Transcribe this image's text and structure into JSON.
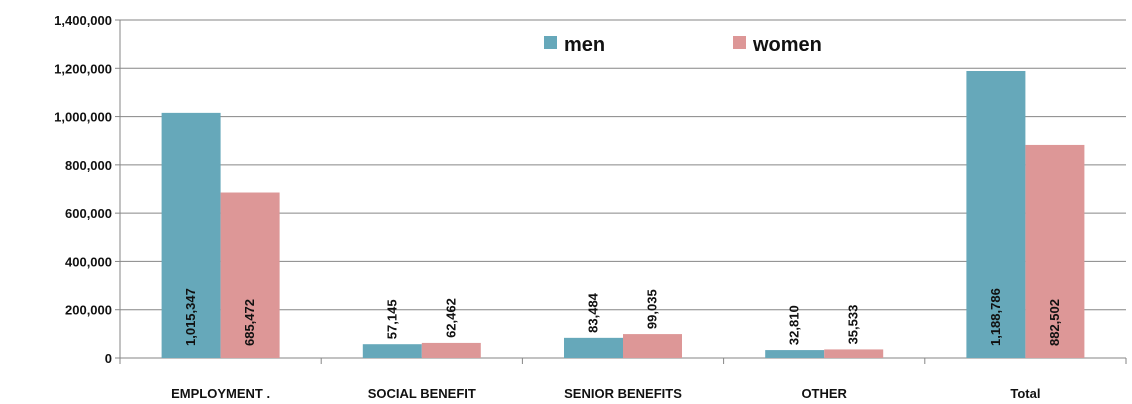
{
  "chart_data": {
    "type": "bar",
    "title": "",
    "xlabel": "",
    "ylabel": "",
    "categories": [
      "EMPLOYMENT .",
      "SOCIAL BENEFIT",
      "SENIOR BENEFITS",
      "OTHER",
      "Total"
    ],
    "series": [
      {
        "name": "men",
        "values": [
          1015347,
          57145,
          83484,
          32810,
          1188786
        ],
        "color": "#66a8ba"
      },
      {
        "name": "women",
        "values": [
          685472,
          62462,
          99035,
          35533,
          882502
        ],
        "color": "#dd9797"
      }
    ],
    "data_labels": {
      "men": [
        "1,015,347",
        "57,145",
        "83,484",
        "32,810",
        "1,188,786"
      ],
      "women": [
        "685,472",
        "62,462",
        "99,035",
        "35,533",
        "882,502"
      ]
    },
    "ylim": [
      0,
      1400000
    ],
    "yticks": [
      0,
      200000,
      400000,
      600000,
      800000,
      1000000,
      1200000,
      1400000
    ],
    "ytick_labels": [
      "0",
      "200,000",
      "400,000",
      "600,000",
      "800,000",
      "1,000,000",
      "1,200,000",
      "1,400,000"
    ],
    "grid": true,
    "legend_position": "top"
  }
}
